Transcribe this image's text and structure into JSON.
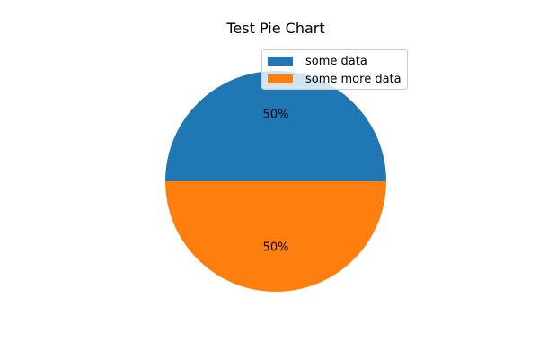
{
  "chart_data": {
    "type": "pie",
    "title": "Test Pie Chart",
    "labels": [
      "some data",
      "some more data"
    ],
    "values": [
      50,
      50
    ],
    "pct_labels": [
      "50%",
      "50%"
    ],
    "colors": [
      "#1f77b4",
      "#ff7f0e"
    ],
    "legend_position": "upper-right"
  }
}
